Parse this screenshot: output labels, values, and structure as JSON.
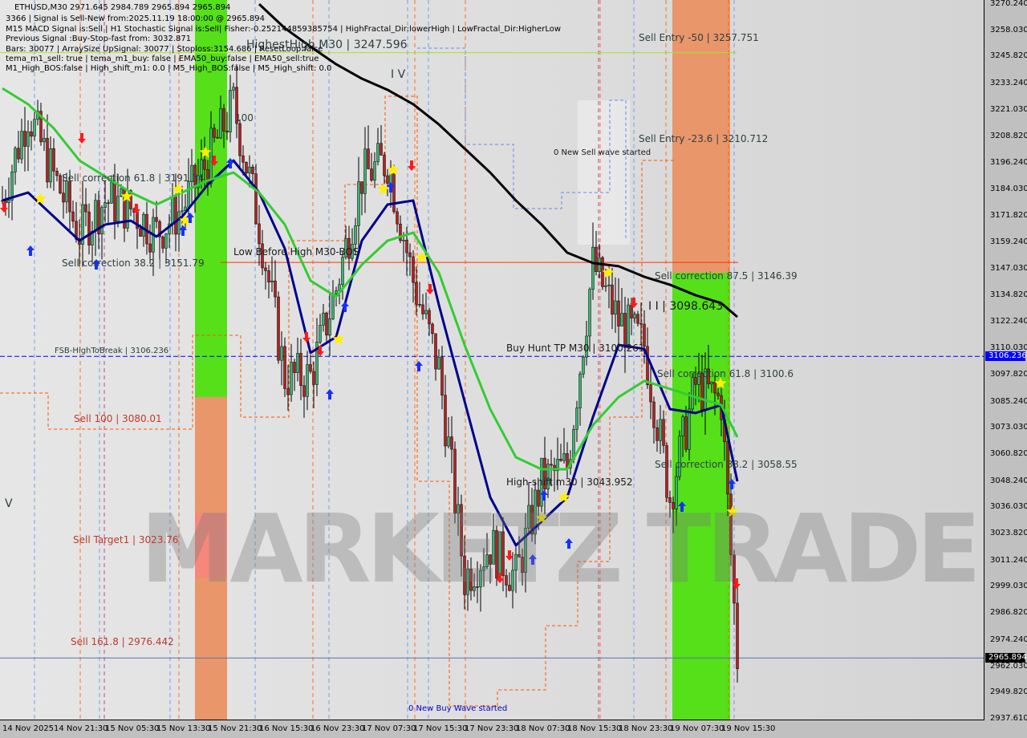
{
  "header": {
    "symbol_line": "ETHUSD,M30  2971.645 2984.789 2965.894 2965.894",
    "info_lines": [
      "3366 | Signal is Sell-New from:2025.11.19 18:00:00 @ 2965.894",
      "M15 MACD Signal is:Sell | H1 Stochastic Signal is:Sell| Fisher:-0.252144859385754 | HighFractal_Dir:lowerHigh | LowFractal_Dir:HigherLow",
      "Previous Signal :Buy-Stop-fast from: 3032.871",
      "Bars: 30077 | ArraySize UpSignal: 30077 | Stoploss:3154.686 | ResetLoop:false",
      "tema_m1_sell: true | tema_m1_buy: false | EMA50_buy:false | EMA50_sell:true",
      "M1_High_BOS:false | High_shift_m1: 0.0 | M5_High_BOS:false | M5_High_shift: 0.0"
    ]
  },
  "watermark": "MARKETZ TRADE",
  "colors": {
    "bull": "#3cb371",
    "bear": "#b22222",
    "ema_black": "#000000",
    "ma_blue": "#00008b",
    "ma_green": "#33cc33",
    "zone_green": "#55e01a",
    "zone_orange": "#e9966a",
    "level_blue": "#0000ff",
    "level_red": "#ff3300",
    "current": "#000000"
  },
  "chart_data": {
    "type": "candlestick",
    "title": "ETHUSD,M30",
    "ylim": [
      2937.61,
      3270.24
    ],
    "y_ticks": [
      "3270.240",
      "3258.030",
      "3245.820",
      "3233.240",
      "3221.030",
      "3208.820",
      "3196.240",
      "3184.030",
      "3171.820",
      "3159.240",
      "3147.030",
      "3134.820",
      "3122.240",
      "3110.030",
      "3097.820",
      "3085.240",
      "3073.030",
      "3060.820",
      "3048.240",
      "3036.030",
      "3023.820",
      "3011.240",
      "2999.030",
      "2986.820",
      "2974.240",
      "2962.030",
      "2949.820",
      "2937.610"
    ],
    "x_ticks": [
      "14 Nov 2025",
      "14 Nov 21:30",
      "15 Nov 05:30",
      "15 Nov 13:30",
      "15 Nov 21:30",
      "16 Nov 15:30",
      "16 Nov 23:30",
      "17 Nov 07:30",
      "17 Nov 15:30",
      "17 Nov 23:30",
      "18 Nov 07:30",
      "18 Nov 15:30",
      "18 Nov 23:30",
      "19 Nov 07:30",
      "19 Nov 15:30"
    ],
    "times": [
      "14 Nov 13:30",
      "14 Nov 17:30",
      "14 Nov 21:30",
      "15 Nov 01:30",
      "15 Nov 05:30",
      "15 Nov 09:30",
      "15 Nov 13:30",
      "15 Nov 17:30",
      "15 Nov 21:30",
      "16 Nov 11:30",
      "16 Nov 15:30",
      "16 Nov 19:30",
      "16 Nov 23:30",
      "17 Nov 03:30",
      "17 Nov 07:30",
      "17 Nov 11:30",
      "17 Nov 15:30",
      "17 Nov 19:30",
      "17 Nov 23:30",
      "18 Nov 03:30",
      "18 Nov 07:30",
      "18 Nov 11:30",
      "18 Nov 15:30",
      "18 Nov 19:30",
      "18 Nov 23:30",
      "19 Nov 03:30",
      "19 Nov 07:30",
      "19 Nov 11:30",
      "19 Nov 15:30",
      "19 Nov 18:00"
    ],
    "close": [
      3178.8,
      3219.9,
      3190.0,
      3163.8,
      3178.8,
      3175.0,
      3163.8,
      3175.0,
      3197.4,
      3223.6,
      3167.6,
      3096.6,
      3096.6,
      3137.7,
      3190.0,
      3197.4,
      3141.5,
      3100.4,
      3003.3,
      3018.3,
      3003.3,
      3048.1,
      3055.0,
      3148.9,
      3122.8,
      3111.6,
      3040.7,
      3092.9,
      3085.4,
      2965.894
    ],
    "series": [
      {
        "values": [
          null,
          null,
          null,
          null,
          null,
          null,
          null,
          null,
          null,
          null,
          3270.2,
          3259.0,
          3250.4,
          3242.2,
          3235.5,
          3230.3,
          3223.6,
          3214.2,
          3203.0,
          3191.8,
          3178.8,
          3167.6,
          3154.5,
          3149.7,
          3148.2,
          3143.3,
          3139.6,
          3134.7,
          3131.0,
          3124.6
        ]
      },
      {
        "values": [
          3178.8,
          3182.5,
          3171.3,
          3160.1,
          3167.6,
          3169.4,
          3162.0,
          3171.3,
          3186.2,
          3197.4,
          3182.5,
          3156.4,
          3107.9,
          3115.3,
          3160.1,
          3176.9,
          3178.8,
          3130.2,
          3085.4,
          3040.7,
          3018.3,
          3029.4,
          3040.7,
          3078.0,
          3111.6,
          3109.7,
          3081.7,
          3079.9,
          3083.6,
          3048.1
        ]
      },
      {
        "values": [
          3231.0,
          3223.6,
          3212.4,
          3197.4,
          3190.0,
          3182.5,
          3176.9,
          3182.5,
          3188.1,
          3191.8,
          3182.5,
          3167.6,
          3141.5,
          3134.0,
          3148.9,
          3160.1,
          3163.8,
          3145.2,
          3111.6,
          3081.7,
          3059.3,
          3053.7,
          3053.7,
          3074.3,
          3087.3,
          3094.8,
          3091.1,
          3087.3,
          3083.6,
          3068.7
        ]
      }
    ],
    "levels": [
      {
        "price": 3247.596,
        "color": "#a6e22e"
      },
      {
        "price": 3150.0,
        "color": "#ff3300"
      },
      {
        "price": 3106.236,
        "color": "#0000ff",
        "dashed": true
      },
      {
        "price": 2965.894,
        "color": "#5577aa"
      }
    ],
    "current_price": "2965.894",
    "level_tag": "3106.236",
    "annotations": [
      {
        "id": "highest-high",
        "text": "HighestHigh   M30 | 3247.596",
        "style": "dark big"
      },
      {
        "id": "sell-entry-50",
        "text": "Sell Entry -50 | 3257.751",
        "style": "dark"
      },
      {
        "id": "wave-iv",
        "text": "I V",
        "style": "dark big"
      },
      {
        "id": "wave-100",
        "text": "100",
        "style": "dark"
      },
      {
        "id": "sell-entry-23",
        "text": "Sell Entry -23.6 | 3210.712",
        "style": "dark"
      },
      {
        "id": "new-sell-wave",
        "text": "0 New Sell wave started",
        "style": ""
      },
      {
        "id": "sell-corr-618-a",
        "text": "Sell correction 61.8 | 3191.34",
        "style": "dark"
      },
      {
        "id": "low-before-high",
        "text": "Low Before High    M30-BOS",
        "style": ""
      },
      {
        "id": "sell-corr-382-a",
        "text": "Sell correction 38.2 | 3151.79",
        "style": "dark"
      },
      {
        "id": "sell-corr-875",
        "text": "Sell correction 87.5 | 3146.39",
        "style": "dark"
      },
      {
        "id": "wave-iii",
        "text": "I I | 3098.643",
        "style": "big"
      },
      {
        "id": "fsb-high",
        "text": "FSB-HighToBreak | 3106.236",
        "style": "dark"
      },
      {
        "id": "buy-hunt",
        "text": "Buy Hunt TP M30 | 3100.261",
        "style": ""
      },
      {
        "id": "sell-corr-618-b",
        "text": "Sell correction 61.8 | 3100.6",
        "style": "dark"
      },
      {
        "id": "sell-100",
        "text": "Sell 100 | 3080.01",
        "style": "red"
      },
      {
        "id": "sell-corr-382-b",
        "text": "Sell correction 38.2 | 3058.55",
        "style": "dark"
      },
      {
        "id": "high-shift",
        "text": "High-shift m30 | 3043.952",
        "style": ""
      },
      {
        "id": "wave-v",
        "text": "V",
        "style": "dark big"
      },
      {
        "id": "sell-target1",
        "text": "Sell Target1 | 3023.76",
        "style": "red"
      },
      {
        "id": "sell-1618",
        "text": "Sell 161.8 | 2976.442",
        "style": "red"
      },
      {
        "id": "new-buy-wave",
        "text": "0 New Buy Wave started",
        "style": "blue"
      }
    ]
  }
}
